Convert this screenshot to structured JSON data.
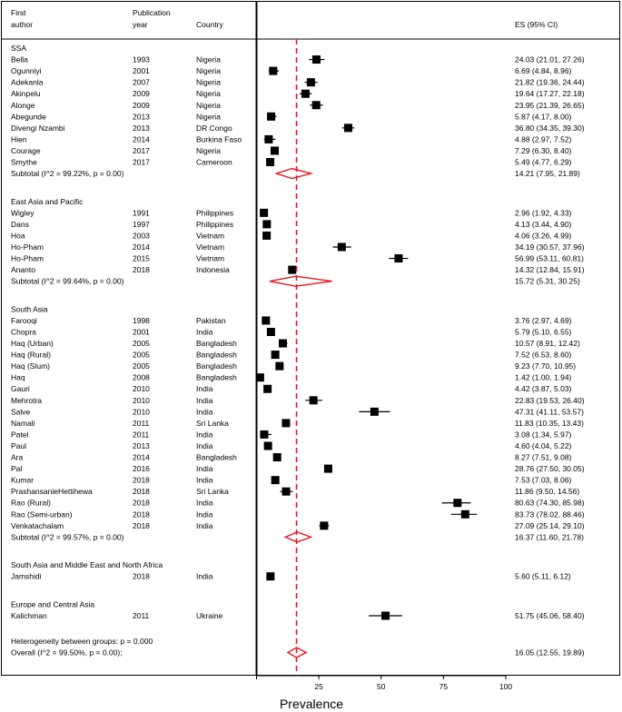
{
  "headers": {
    "author_line1": "First",
    "author_line2": "author",
    "year_line1": "Publication",
    "year_line2": "year",
    "country": "Country",
    "es": "ES (95% CI)"
  },
  "chart_data": {
    "type": "forest",
    "xlabel": "Prevalence",
    "xlim": [
      0,
      100
    ],
    "xticks": [
      25,
      50,
      75,
      100
    ],
    "overall_line": 16.05,
    "groups": [
      {
        "name": "SSA",
        "studies": [
          {
            "author": "Bella",
            "year": "1993",
            "country": "Nigeria",
            "es": 24.03,
            "lo": 21.01,
            "hi": 27.26,
            "label": "24.03 (21.01, 27.26)"
          },
          {
            "author": "Ogunniyi",
            "year": "2001",
            "country": "Nigeria",
            "es": 6.69,
            "lo": 4.84,
            "hi": 8.96,
            "label": "6.69 (4.84, 8.96)"
          },
          {
            "author": "Adekanla",
            "year": "2007",
            "country": "Nigeria",
            "es": 21.82,
            "lo": 19.36,
            "hi": 24.44,
            "label": "21.82 (19.36, 24.44)"
          },
          {
            "author": "Akinpelu",
            "year": "2009",
            "country": "Nigeria",
            "es": 19.64,
            "lo": 17.27,
            "hi": 22.18,
            "label": "19.64 (17.27, 22.18)"
          },
          {
            "author": "Alonge",
            "year": "2009",
            "country": "Nigeria",
            "es": 23.95,
            "lo": 21.39,
            "hi": 26.65,
            "label": "23.95 (21.39, 26.65)"
          },
          {
            "author": "Abegunde",
            "year": "2013",
            "country": "Nigeria",
            "es": 5.87,
            "lo": 4.17,
            "hi": 8.0,
            "label": "5.87 (4.17, 8.00)"
          },
          {
            "author": "Divengi Nzambi",
            "year": "2013",
            "country": "DR Congo",
            "es": 36.8,
            "lo": 34.35,
            "hi": 39.3,
            "label": "36.80 (34.35, 39.30)"
          },
          {
            "author": "Hien",
            "year": "2014",
            "country": "Burkina Faso",
            "es": 4.88,
            "lo": 2.97,
            "hi": 7.52,
            "label": "4.88 (2.97, 7.52)"
          },
          {
            "author": "Courage",
            "year": "2017",
            "country": "Nigeria",
            "es": 7.29,
            "lo": 6.3,
            "hi": 8.4,
            "label": "7.29 (6.30, 8.40)"
          },
          {
            "author": "Smythe",
            "year": "2017",
            "country": "Cameroon",
            "es": 5.49,
            "lo": 4.77,
            "hi": 6.29,
            "label": "5.49 (4.77, 6.29)"
          }
        ],
        "subtotal": {
          "text": "Subtotal  (I^2 = 99.22%, p = 0.00)",
          "es": 14.21,
          "lo": 7.95,
          "hi": 21.89,
          "label": "14.21 (7.95, 21.89)"
        }
      },
      {
        "name": "East Asia and Pacific",
        "studies": [
          {
            "author": "Wigley",
            "year": "1991",
            "country": "Philippines",
            "es": 2.96,
            "lo": 1.92,
            "hi": 4.33,
            "label": "2.96 (1.92, 4.33)"
          },
          {
            "author": "Dans",
            "year": "1997",
            "country": "Philippines",
            "es": 4.13,
            "lo": 3.44,
            "hi": 4.9,
            "label": "4.13 (3.44, 4.90)"
          },
          {
            "author": "Hoa",
            "year": "2003",
            "country": "Vietnam",
            "es": 4.06,
            "lo": 3.26,
            "hi": 4.99,
            "label": "4.06 (3.26, 4.99)"
          },
          {
            "author": "Ho-Pham",
            "year": "2014",
            "country": "Vietnam",
            "es": 34.19,
            "lo": 30.57,
            "hi": 37.96,
            "label": "34.19 (30.57, 37.96)"
          },
          {
            "author": "Ho-Pham",
            "year": "2015",
            "country": "Vietnam",
            "es": 56.99,
            "lo": 53.11,
            "hi": 60.81,
            "label": "56.99 (53.11, 60.81)"
          },
          {
            "author": "Ananto",
            "year": "2018",
            "country": "Indonesia",
            "es": 14.32,
            "lo": 12.84,
            "hi": 15.91,
            "label": "14.32 (12.84, 15.91)"
          }
        ],
        "subtotal": {
          "text": "Subtotal  (I^2 = 99.64%, p = 0.00)",
          "es": 15.72,
          "lo": 5.31,
          "hi": 30.25,
          "label": "15.72 (5.31, 30.25)"
        }
      },
      {
        "name": "South Asia",
        "studies": [
          {
            "author": "Farooqi",
            "year": "1998",
            "country": "Pakistan",
            "es": 3.76,
            "lo": 2.97,
            "hi": 4.69,
            "label": "3.76 (2.97, 4.69)"
          },
          {
            "author": "Chopra",
            "year": "2001",
            "country": "India",
            "es": 5.79,
            "lo": 5.1,
            "hi": 6.55,
            "label": "5.79 (5.10, 6.55)"
          },
          {
            "author": "Haq  (Urban)",
            "year": "2005",
            "country": "Bangladesh",
            "es": 10.57,
            "lo": 8.91,
            "hi": 12.42,
            "label": "10.57 (8.91, 12.42)"
          },
          {
            "author": "Haq (Rural)",
            "year": "2005",
            "country": "Bangladesh",
            "es": 7.52,
            "lo": 6.53,
            "hi": 8.6,
            "label": "7.52 (6.53, 8.60)"
          },
          {
            "author": "Haq (Slum)",
            "year": "2005",
            "country": "Bangladesh",
            "es": 9.23,
            "lo": 7.7,
            "hi": 10.95,
            "label": "9.23 (7.70, 10.95)"
          },
          {
            "author": "Haq",
            "year": "2008",
            "country": "Bangladesh",
            "es": 1.42,
            "lo": 1.0,
            "hi": 1.94,
            "label": "1.42 (1.00, 1.94)"
          },
          {
            "author": "Gauri",
            "year": "2010",
            "country": "India",
            "es": 4.42,
            "lo": 3.87,
            "hi": 5.03,
            "label": "4.42 (3.87, 5.03)"
          },
          {
            "author": "Mehrotra",
            "year": "2010",
            "country": "India",
            "es": 22.83,
            "lo": 19.53,
            "hi": 26.4,
            "label": "22.83 (19.53, 26.40)"
          },
          {
            "author": "Salve",
            "year": "2010",
            "country": "India",
            "es": 47.31,
            "lo": 41.11,
            "hi": 53.57,
            "label": "47.31 (41.11, 53.57)"
          },
          {
            "author": "Namali",
            "year": "2011",
            "country": "Sri Lanka",
            "es": 11.83,
            "lo": 10.35,
            "hi": 13.43,
            "label": "11.83 (10.35, 13.43)"
          },
          {
            "author": "Patel",
            "year": "2011",
            "country": "India",
            "es": 3.08,
            "lo": 1.34,
            "hi": 5.97,
            "label": "3.08 (1.34, 5.97)"
          },
          {
            "author": "Paul",
            "year": "2013",
            "country": "India",
            "es": 4.6,
            "lo": 4.04,
            "hi": 5.22,
            "label": "4.60 (4.04, 5.22)"
          },
          {
            "author": "Ara",
            "year": "2014",
            "country": "Bangladesh",
            "es": 8.27,
            "lo": 7.51,
            "hi": 9.08,
            "label": "8.27 (7.51, 9.08)"
          },
          {
            "author": "Pal",
            "year": "2016",
            "country": "India",
            "es": 28.76,
            "lo": 27.5,
            "hi": 30.05,
            "label": "28.76 (27.50, 30.05)"
          },
          {
            "author": "Kumar",
            "year": "2018",
            "country": "India",
            "es": 7.53,
            "lo": 7.03,
            "hi": 8.06,
            "label": "7.53 (7.03, 8.06)"
          },
          {
            "author": "PrashansanieHettihewa",
            "year": "2018",
            "country": "Sri Lanka",
            "es": 11.86,
            "lo": 9.5,
            "hi": 14.56,
            "label": "11.86 (9.50, 14.56)"
          },
          {
            "author": "Rao (Rural)",
            "year": "2018",
            "country": "India",
            "es": 80.63,
            "lo": 74.3,
            "hi": 85.98,
            "label": "80.63 (74.30, 85.98)"
          },
          {
            "author": "Rao (Semi-urban)",
            "year": "2018",
            "country": "India",
            "es": 83.73,
            "lo": 78.02,
            "hi": 88.46,
            "label": "83.73 (78.02, 88.46)"
          },
          {
            "author": "Venkatachalam",
            "year": "2018",
            "country": "India",
            "es": 27.09,
            "lo": 25.14,
            "hi": 29.1,
            "label": "27.09 (25.14, 29.10)"
          }
        ],
        "subtotal": {
          "text": "Subtotal  (I^2 = 99.57%, p = 0.00)",
          "es": 16.37,
          "lo": 11.6,
          "hi": 21.78,
          "label": "16.37 (11.60, 21.78)"
        }
      },
      {
        "name": "South Asia and Middle East and North Africa",
        "studies": [
          {
            "author": "Jamshidi",
            "year": "2018",
            "country": "India",
            "es": 5.6,
            "lo": 5.11,
            "hi": 6.12,
            "label": "5.60 (5.11, 6.12)"
          }
        ]
      },
      {
        "name": "Europe and Central Asia",
        "studies": [
          {
            "author": "Kalichman",
            "year": "2011",
            "country": "Ukraine",
            "es": 51.75,
            "lo": 45.06,
            "hi": 58.4,
            "label": "51.75 (45.06, 58.40)"
          }
        ]
      }
    ],
    "heterogeneity": "Heterogeneity between groups: p = 0.000",
    "overall": {
      "text": "Overall  (I^2 = 99.50%, p = 0.00);",
      "es": 16.05,
      "lo": 12.55,
      "hi": 19.89,
      "label": "16.05 (12.55, 19.89)"
    }
  }
}
